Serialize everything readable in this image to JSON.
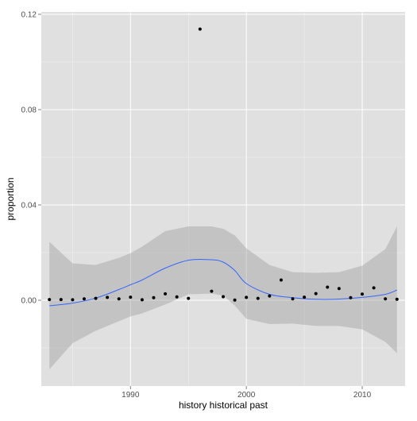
{
  "chart_data": {
    "type": "scatter",
    "xlabel": "history historical past",
    "ylabel": "proportion",
    "xlim": [
      1982.3,
      2013.7
    ],
    "ylim": [
      -0.036,
      0.121
    ],
    "x_ticks": [
      1990,
      2000,
      2010
    ],
    "x_tick_labels": [
      "1990",
      "2000",
      "2010"
    ],
    "y_ticks": [
      0.0,
      0.04,
      0.08,
      0.12
    ],
    "y_tick_labels": [
      "0.00",
      "0.04",
      "0.08",
      "0.12"
    ],
    "grid": true,
    "colors": {
      "panel_background": "#e0e0e0",
      "grid_line": "#ffffff",
      "points": "#000000",
      "smooth_line": "#3366ff",
      "confidence_band": "#999999"
    },
    "points": {
      "x": [
        1983,
        1984,
        1985,
        1986,
        1987,
        1988,
        1989,
        1990,
        1991,
        1992,
        1993,
        1994,
        1995,
        1996,
        1997,
        1998,
        1999,
        2000,
        2001,
        2002,
        2003,
        2004,
        2005,
        2006,
        2007,
        2008,
        2009,
        2010,
        2011,
        2012,
        2013
      ],
      "y": [
        0.0003,
        0.0003,
        0.0002,
        0.0006,
        0.0008,
        0.0012,
        0.0006,
        0.0013,
        0.0002,
        0.0011,
        0.0027,
        0.0014,
        0.0008,
        0.1138,
        0.0038,
        0.0015,
        0.0001,
        0.0012,
        0.0008,
        0.0018,
        0.0085,
        0.0006,
        0.0013,
        0.0028,
        0.0055,
        0.0049,
        0.0011,
        0.0026,
        0.0052,
        0.0006,
        0.0004
      ]
    },
    "smooth": {
      "x": [
        1983,
        1985,
        1987,
        1989,
        1990,
        1991,
        1993,
        1995,
        1997,
        1998,
        1999,
        2000,
        2002,
        2004,
        2006,
        2008,
        2010,
        2012,
        2013
      ],
      "y": [
        -0.0023,
        -0.0012,
        0.0009,
        0.0045,
        0.0065,
        0.0085,
        0.0135,
        0.0168,
        0.017,
        0.016,
        0.0125,
        0.007,
        0.0025,
        0.0011,
        0.0004,
        0.0005,
        0.0012,
        0.0025,
        0.0043
      ]
    },
    "band": {
      "x": [
        1983,
        1985,
        1987,
        1989,
        1990,
        1991,
        1993,
        1995,
        1997,
        1998,
        1999,
        2000,
        2002,
        2004,
        2006,
        2008,
        2010,
        2012,
        2013
      ],
      "upper": [
        0.0245,
        0.0155,
        0.0148,
        0.0178,
        0.0198,
        0.0225,
        0.029,
        0.031,
        0.031,
        0.03,
        0.0272,
        0.0218,
        0.0148,
        0.0118,
        0.0115,
        0.0118,
        0.0145,
        0.0215,
        0.031
      ],
      "lower": [
        -0.029,
        -0.018,
        -0.0128,
        -0.0088,
        -0.0068,
        -0.0055,
        -0.0018,
        0.0025,
        0.0028,
        0.002,
        -0.0022,
        -0.0078,
        -0.01,
        -0.0098,
        -0.0108,
        -0.0108,
        -0.0122,
        -0.0175,
        -0.0222
      ]
    }
  }
}
